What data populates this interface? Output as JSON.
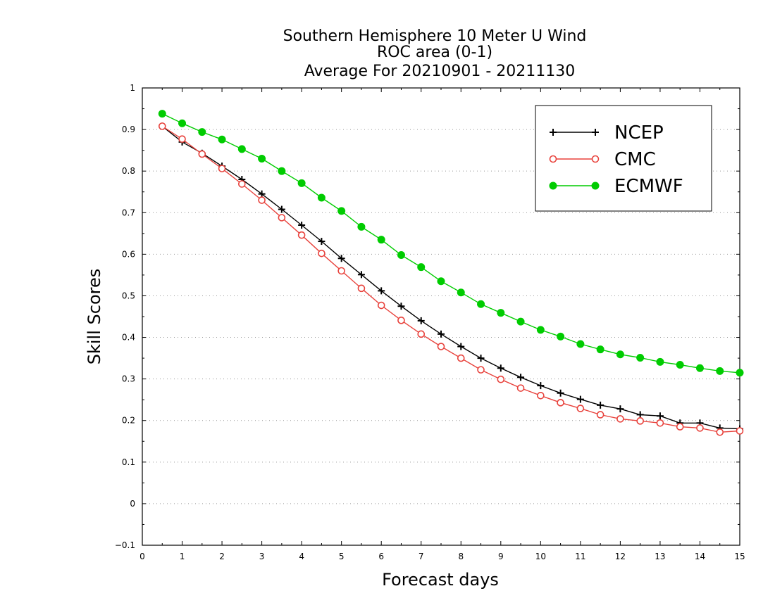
{
  "chart_data": {
    "type": "line",
    "title_lines": [
      "Southern Hemisphere 10 Meter U Wind",
      "ROC area (0-1)",
      "Average For 20210901 - 20211130"
    ],
    "xlabel": "Forecast days",
    "ylabel": "Skill Scores",
    "xlim": [
      0,
      15
    ],
    "ylim": [
      -0.1,
      1
    ],
    "x_ticks": [
      "0",
      "1",
      "2",
      "3",
      "4",
      "5",
      "6",
      "7",
      "8",
      "9",
      "10",
      "11",
      "12",
      "13",
      "14",
      "15"
    ],
    "y_ticks": [
      "−0.1",
      "0",
      "0.1",
      "0.2",
      "0.3",
      "0.4",
      "0.5",
      "0.6",
      "0.7",
      "0.8",
      "0.9",
      "1"
    ],
    "y_tick_values": [
      -0.1,
      0,
      0.1,
      0.2,
      0.3,
      0.4,
      0.5,
      0.6,
      0.7,
      0.8,
      0.9,
      1
    ],
    "grid": "horizontal dotted",
    "legend_position": "top-right",
    "x": [
      0.5,
      1,
      1.5,
      2,
      2.5,
      3,
      3.5,
      4,
      4.5,
      5,
      5.5,
      6,
      6.5,
      7,
      7.5,
      8,
      8.5,
      9,
      9.5,
      10,
      10.5,
      11,
      11.5,
      12,
      12.5,
      13,
      13.5,
      14,
      14.5,
      15
    ],
    "series": [
      {
        "name": "NCEP",
        "color": "#000000",
        "marker": "plus",
        "values": [
          0.908,
          0.87,
          0.843,
          0.812,
          0.78,
          0.745,
          0.708,
          0.67,
          0.631,
          0.59,
          0.551,
          0.512,
          0.475,
          0.44,
          0.408,
          0.378,
          0.35,
          0.326,
          0.304,
          0.284,
          0.266,
          0.251,
          0.237,
          0.228,
          0.214,
          0.211,
          0.194,
          0.194,
          0.182,
          0.18
        ]
      },
      {
        "name": "CMC",
        "color": "#e8423c",
        "marker": "open-circle",
        "values": [
          0.908,
          0.877,
          0.841,
          0.806,
          0.769,
          0.73,
          0.688,
          0.646,
          0.602,
          0.56,
          0.518,
          0.477,
          0.441,
          0.408,
          0.378,
          0.35,
          0.322,
          0.299,
          0.278,
          0.26,
          0.243,
          0.229,
          0.214,
          0.204,
          0.199,
          0.194,
          0.185,
          0.182,
          0.172,
          0.175
        ]
      },
      {
        "name": "ECMWF",
        "color": "#00cc00",
        "marker": "filled-circle",
        "values": [
          0.938,
          0.915,
          0.894,
          0.876,
          0.853,
          0.83,
          0.8,
          0.771,
          0.736,
          0.704,
          0.666,
          0.635,
          0.598,
          0.569,
          0.535,
          0.508,
          0.48,
          0.459,
          0.438,
          0.418,
          0.402,
          0.384,
          0.371,
          0.359,
          0.351,
          0.341,
          0.334,
          0.326,
          0.319,
          0.315
        ]
      }
    ]
  }
}
